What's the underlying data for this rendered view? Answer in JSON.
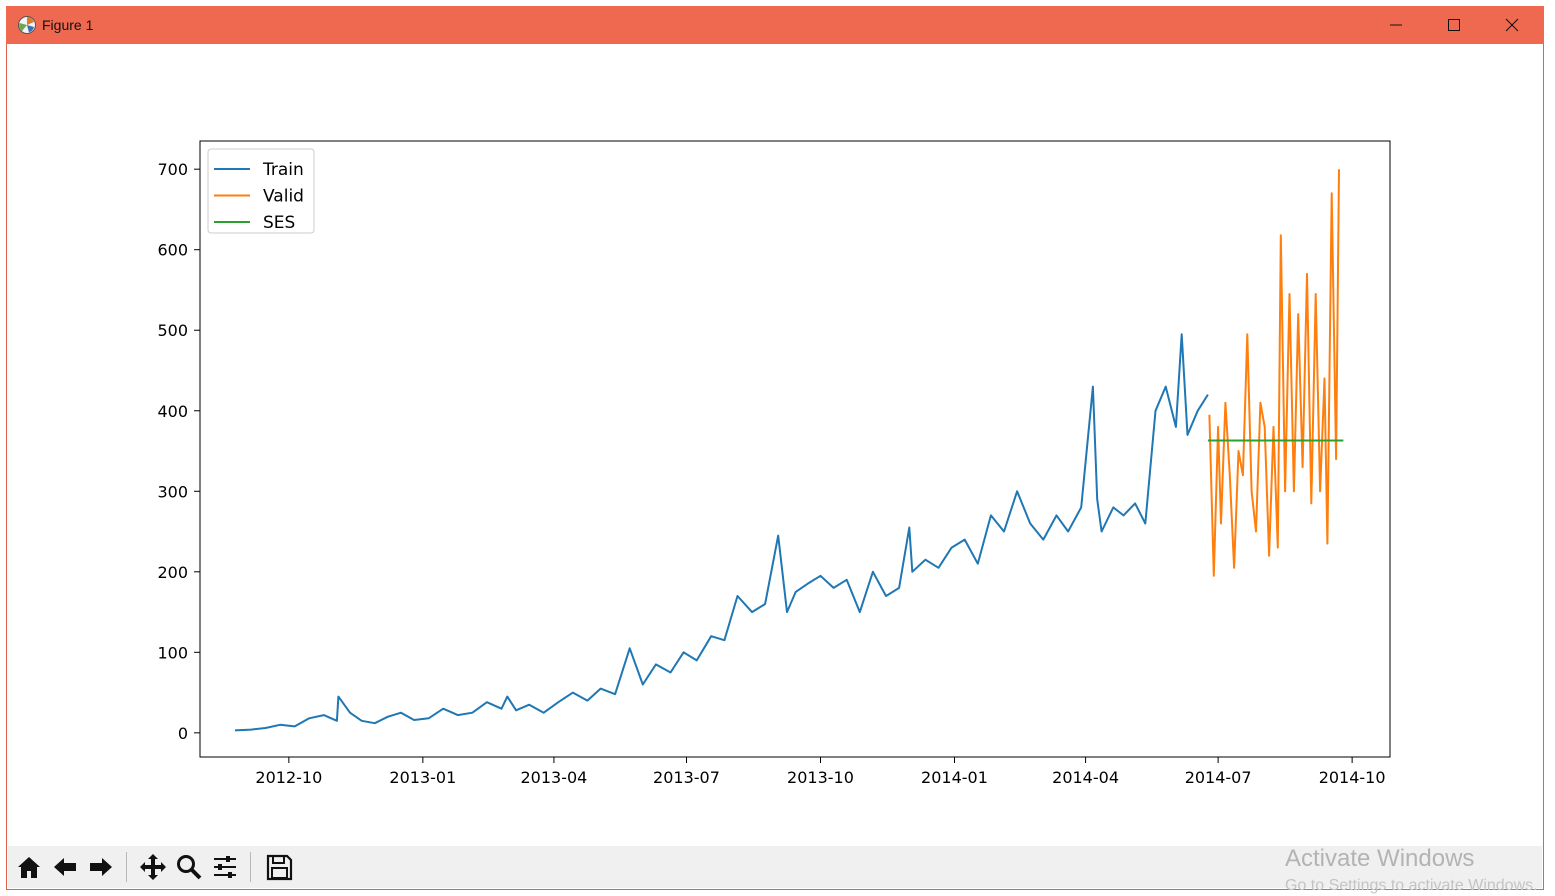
{
  "window": {
    "title": "Figure 1"
  },
  "toolbar": {
    "buttons": [
      "home-icon",
      "back-arrow-icon",
      "forward-arrow-icon",
      "pan-icon",
      "zoom-icon",
      "configure-subplots-icon",
      "save-icon"
    ]
  },
  "watermark": {
    "line1": "Activate Windows",
    "line2": "Go to Settings to activate Windows."
  },
  "colors": {
    "titlebar": "#ef6951",
    "train": "#1f77b4",
    "valid": "#ff7f0e",
    "ses": "#2ca02c"
  },
  "chart_data": {
    "type": "line",
    "title": "",
    "xlabel": "",
    "ylabel": "",
    "x_type": "date",
    "x_range": [
      "2012-08-01",
      "2014-10-27"
    ],
    "ylim": [
      -30,
      735
    ],
    "xticks": [
      "2012-10-01",
      "2013-01-01",
      "2013-04-01",
      "2013-07-01",
      "2013-10-01",
      "2014-01-01",
      "2014-04-01",
      "2014-07-01",
      "2014-10-01"
    ],
    "xtick_labels": [
      "2012-10",
      "2013-01",
      "2013-04",
      "2013-07",
      "2013-10",
      "2014-01",
      "2014-04",
      "2014-07",
      "2014-10"
    ],
    "yticks": [
      0,
      100,
      200,
      300,
      400,
      500,
      600,
      700
    ],
    "grid": false,
    "legend_position": "top-left",
    "series": [
      {
        "name": "Train",
        "color": "#1f77b4",
        "x": [
          "2012-08-25",
          "2012-09-05",
          "2012-09-15",
          "2012-09-25",
          "2012-10-05",
          "2012-10-15",
          "2012-10-25",
          "2012-11-03",
          "2012-11-04",
          "2012-11-12",
          "2012-11-20",
          "2012-11-29",
          "2012-12-08",
          "2012-12-17",
          "2012-12-26",
          "2013-01-05",
          "2013-01-15",
          "2013-01-25",
          "2013-02-04",
          "2013-02-14",
          "2013-02-24",
          "2013-02-28",
          "2013-03-06",
          "2013-03-15",
          "2013-03-25",
          "2013-04-04",
          "2013-04-14",
          "2013-04-24",
          "2013-05-03",
          "2013-05-13",
          "2013-05-23",
          "2013-06-01",
          "2013-06-10",
          "2013-06-20",
          "2013-06-29",
          "2013-07-08",
          "2013-07-18",
          "2013-07-27",
          "2013-08-05",
          "2013-08-15",
          "2013-08-24",
          "2013-09-02",
          "2013-09-08",
          "2013-09-14",
          "2013-09-22",
          "2013-10-01",
          "2013-10-10",
          "2013-10-19",
          "2013-10-28",
          "2013-11-06",
          "2013-11-15",
          "2013-11-24",
          "2013-12-01",
          "2013-12-03",
          "2013-12-12",
          "2013-12-21",
          "2013-12-30",
          "2014-01-08",
          "2014-01-17",
          "2014-01-26",
          "2014-02-04",
          "2014-02-13",
          "2014-02-22",
          "2014-03-03",
          "2014-03-12",
          "2014-03-20",
          "2014-03-29",
          "2014-04-06",
          "2014-04-09",
          "2014-04-12",
          "2014-04-20",
          "2014-04-27",
          "2014-05-05",
          "2014-05-12",
          "2014-05-19",
          "2014-05-26",
          "2014-06-02",
          "2014-06-06",
          "2014-06-10",
          "2014-06-17",
          "2014-06-24"
        ],
        "y": [
          3,
          4,
          6,
          10,
          8,
          18,
          22,
          15,
          45,
          25,
          15,
          12,
          20,
          25,
          16,
          18,
          30,
          22,
          25,
          38,
          30,
          45,
          28,
          35,
          25,
          38,
          50,
          40,
          55,
          48,
          105,
          60,
          85,
          75,
          100,
          90,
          120,
          115,
          170,
          150,
          160,
          245,
          150,
          175,
          185,
          195,
          180,
          190,
          150,
          200,
          170,
          180,
          255,
          200,
          215,
          205,
          230,
          240,
          210,
          270,
          250,
          300,
          260,
          240,
          270,
          250,
          280,
          430,
          290,
          250,
          280,
          270,
          285,
          260,
          400,
          430,
          380,
          495,
          370,
          400,
          420
        ]
      },
      {
        "name": "Valid",
        "color": "#ff7f0e",
        "x": [
          "2014-06-25",
          "2014-06-28",
          "2014-07-01",
          "2014-07-03",
          "2014-07-06",
          "2014-07-09",
          "2014-07-12",
          "2014-07-15",
          "2014-07-18",
          "2014-07-21",
          "2014-07-24",
          "2014-07-27",
          "2014-07-30",
          "2014-08-02",
          "2014-08-05",
          "2014-08-08",
          "2014-08-11",
          "2014-08-13",
          "2014-08-16",
          "2014-08-19",
          "2014-08-22",
          "2014-08-25",
          "2014-08-28",
          "2014-08-31",
          "2014-09-03",
          "2014-09-06",
          "2014-09-09",
          "2014-09-12",
          "2014-09-14",
          "2014-09-17",
          "2014-09-20",
          "2014-09-22"
        ],
        "y": [
          395,
          195,
          380,
          260,
          410,
          320,
          205,
          350,
          320,
          495,
          300,
          250,
          410,
          380,
          220,
          380,
          230,
          618,
          300,
          545,
          300,
          520,
          330,
          570,
          285,
          545,
          300,
          440,
          235,
          670,
          340,
          700
        ]
      },
      {
        "name": "SES",
        "color": "#2ca02c",
        "x": [
          "2014-06-24",
          "2014-09-25"
        ],
        "y": [
          363,
          363
        ]
      }
    ]
  }
}
